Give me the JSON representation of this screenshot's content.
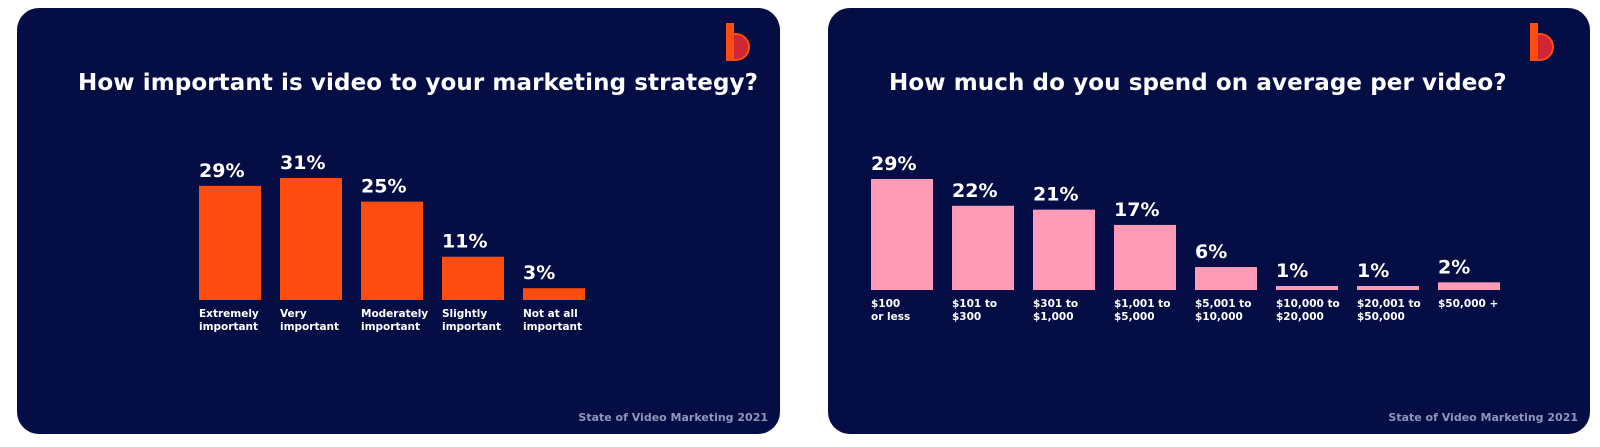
{
  "footer_text": "State of Video Marketing 2021",
  "logo_icon": "brand-logo-icon",
  "colors": {
    "background": "#050d45",
    "bar_left": "#fc4c0f",
    "bar_right": "#fe9bb6",
    "logo": "#fc4c0f",
    "label_text": "#ffffff",
    "footer_text": "#8f95b8"
  },
  "chart_data": [
    {
      "type": "bar",
      "title": "How important is video to your marketing strategy?",
      "categories": [
        [
          "Extremely",
          "important"
        ],
        [
          "Very",
          "important"
        ],
        [
          "Moderately",
          "important"
        ],
        [
          "Slightly",
          "important"
        ],
        [
          "Not at all",
          "important"
        ]
      ],
      "values": [
        29,
        31,
        25,
        11,
        3
      ],
      "value_labels": [
        "29%",
        "31%",
        "25%",
        "11%",
        "3%"
      ],
      "unit": "%",
      "ylim": [
        0,
        31
      ],
      "grid": false,
      "axes_visible": false
    },
    {
      "type": "bar",
      "title": "How much do you spend on average per video?",
      "categories": [
        [
          "$100",
          "or less"
        ],
        [
          "$101 to",
          "$300"
        ],
        [
          "$301 to",
          "$1,000"
        ],
        [
          "$1,001 to",
          "$5,000"
        ],
        [
          "$5,001 to",
          "$10,000"
        ],
        [
          "$10,000 to",
          "$20,000"
        ],
        [
          "$20,001 to",
          "$50,000"
        ],
        [
          "$50,000 +"
        ]
      ],
      "values": [
        29,
        22,
        21,
        17,
        6,
        1,
        1,
        2
      ],
      "value_labels": [
        "29%",
        "22%",
        "21%",
        "17%",
        "6%",
        "1%",
        "1%",
        "2%"
      ],
      "unit": "%",
      "ylim": [
        0,
        29
      ],
      "grid": false,
      "axes_visible": false
    }
  ]
}
